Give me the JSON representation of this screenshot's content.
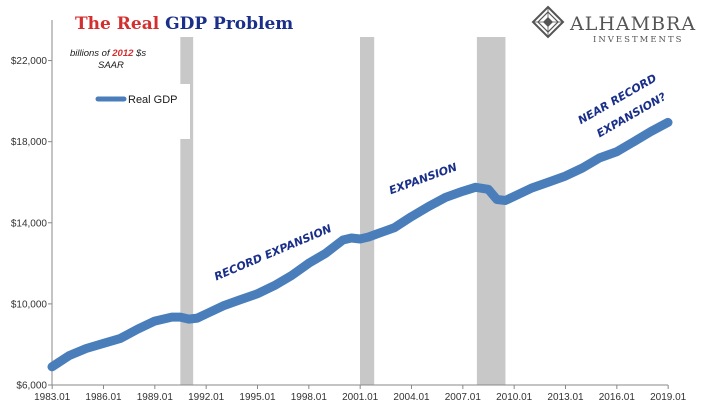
{
  "chart_data": {
    "type": "line",
    "title_parts": [
      {
        "text": "The Real",
        "color": "#d32f2f"
      },
      {
        "text": "GDP Problem",
        "color": "#1a2f8a"
      }
    ],
    "subtitle_lines": [
      [
        {
          "text": "billions of ",
          "color": "#1a1a1a"
        },
        {
          "text": "2012",
          "color": "#d32f2f"
        },
        {
          "text": " $s",
          "color": "#1a1a1a"
        }
      ],
      [
        {
          "text": "SAAR",
          "color": "#1a1a1a"
        }
      ]
    ],
    "legend": {
      "label": "Real GDP",
      "position": "top-left"
    },
    "x_ticks": [
      "1983.01",
      "1986.01",
      "1989.01",
      "1992.01",
      "1995.01",
      "1998.01",
      "2001.01",
      "2004.01",
      "2007.01",
      "2010.01",
      "2013.01",
      "2016.01",
      "2019.01"
    ],
    "y_ticks": [
      "$6,000",
      "$10,000",
      "$14,000",
      "$18,000",
      "$22,000"
    ],
    "xlim": [
      1983.0,
      2019.0
    ],
    "ylim": [
      6000,
      24000
    ],
    "y_tick_values": [
      6000,
      10000,
      14000,
      18000,
      22000
    ],
    "recessions": [
      [
        1990.5,
        1991.25
      ],
      [
        2001.0,
        2001.83
      ],
      [
        2007.83,
        2009.5
      ]
    ],
    "series": [
      {
        "name": "Real GDP",
        "color": "#4a7ebb",
        "x": [
          1983.0,
          1984.0,
          1985.0,
          1986.0,
          1987.0,
          1988.0,
          1989.0,
          1990.0,
          1990.5,
          1991.0,
          1991.5,
          1992.0,
          1993.0,
          1994.0,
          1995.0,
          1996.0,
          1997.0,
          1998.0,
          1999.0,
          2000.0,
          2000.5,
          2001.0,
          2001.5,
          2002.0,
          2003.0,
          2004.0,
          2005.0,
          2006.0,
          2007.0,
          2007.75,
          2008.5,
          2009.0,
          2009.5,
          2010.0,
          2011.0,
          2012.0,
          2013.0,
          2014.0,
          2015.0,
          2016.0,
          2017.0,
          2018.0,
          2019.0
        ],
        "values": [
          6900,
          7450,
          7800,
          8050,
          8300,
          8750,
          9150,
          9350,
          9350,
          9250,
          9300,
          9500,
          9900,
          10200,
          10500,
          10900,
          11400,
          12000,
          12500,
          13150,
          13250,
          13200,
          13300,
          13450,
          13750,
          14300,
          14800,
          15250,
          15550,
          15750,
          15650,
          15150,
          15100,
          15300,
          15700,
          16000,
          16300,
          16700,
          17200,
          17500,
          18000,
          18500,
          18950
        ]
      }
    ],
    "annotations": [
      {
        "text": "RECORD EXPANSION",
        "x": 1992.6,
        "y": 11150,
        "angle": -23,
        "color": "#1a2f8a"
      },
      {
        "text": "EXPANSION",
        "x": 2002.8,
        "y": 15400,
        "angle": -20,
        "color": "#1a2f8a"
      },
      {
        "text": "NEAR RECORD",
        "x": 2013.9,
        "y": 18850,
        "angle": -30,
        "color": "#1a2f8a"
      },
      {
        "text": "EXPANSION?",
        "x": 2015.0,
        "y": 18200,
        "angle": -30,
        "color": "#1a2f8a"
      }
    ],
    "grid": false
  },
  "logo": {
    "name": "ALHAMBRA",
    "sub": "INVESTMENTS"
  }
}
